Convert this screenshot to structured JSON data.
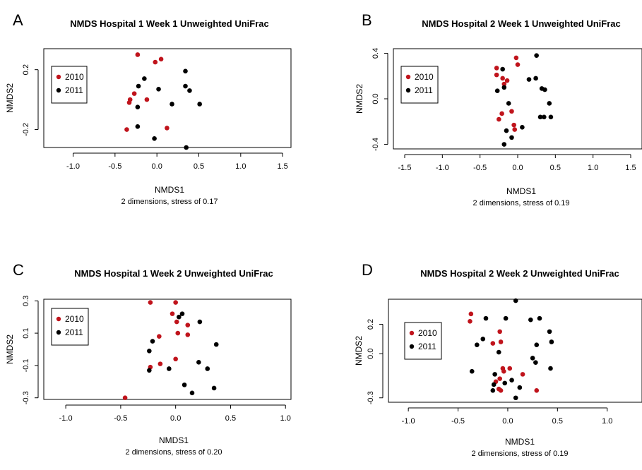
{
  "chart_data": [
    {
      "panel_label": "A",
      "type": "scatter",
      "title": "NMDS Hospital 1 Week 1 Unweighted UniFrac",
      "xlabel": "NMDS1",
      "subtitle": "2 dimensions, stress of 0.17",
      "ylabel": "NMDS2",
      "xlim": [
        -1.35,
        1.6
      ],
      "ylim": [
        -0.32,
        0.34
      ],
      "xticks": [
        -1.0,
        -0.5,
        0.0,
        0.5,
        1.0,
        1.5
      ],
      "xtick_labels": [
        "-1.0",
        "-0.5",
        "0.0",
        "0.5",
        "1.0",
        "1.5"
      ],
      "yticks": [
        -0.2,
        0.2
      ],
      "ytick_labels": [
        "-0.2",
        "0.2"
      ],
      "legend": {
        "position": "top-left"
      },
      "series": [
        {
          "name": "2010",
          "color": "#c0141c",
          "points": [
            [
              -0.23,
              0.3
            ],
            [
              0.05,
              0.27
            ],
            [
              -0.02,
              0.25
            ],
            [
              -0.27,
              0.04
            ],
            [
              -0.32,
              0.0
            ],
            [
              -0.33,
              -0.02
            ],
            [
              -0.12,
              0.0
            ],
            [
              -0.36,
              -0.2
            ],
            [
              0.12,
              -0.19
            ]
          ]
        },
        {
          "name": "2011",
          "color": "#000000",
          "points": [
            [
              0.34,
              0.19
            ],
            [
              -0.15,
              0.14
            ],
            [
              -0.22,
              0.09
            ],
            [
              0.34,
              0.09
            ],
            [
              0.39,
              0.06
            ],
            [
              0.02,
              0.07
            ],
            [
              0.18,
              -0.03
            ],
            [
              0.51,
              -0.03
            ],
            [
              -0.23,
              -0.05
            ],
            [
              -0.23,
              -0.18
            ],
            [
              -0.03,
              -0.26
            ],
            [
              0.35,
              -0.32
            ]
          ]
        }
      ]
    },
    {
      "panel_label": "B",
      "type": "scatter",
      "title": "NMDS Hospital 2 Week 1 Unweighted UniFrac",
      "xlabel": "NMDS1",
      "subtitle": "2 dimensions, stress of 0.19",
      "ylabel": "NMDS2",
      "xlim": [
        -1.65,
        1.65
      ],
      "ylim": [
        -0.44,
        0.44
      ],
      "xticks": [
        -1.5,
        -1.0,
        -0.5,
        0.0,
        0.5,
        1.0,
        1.5
      ],
      "xtick_labels": [
        "-1.5",
        "-1.0",
        "-0.5",
        "0.0",
        "0.5",
        "1.0",
        "1.5"
      ],
      "yticks": [
        -0.4,
        0.0,
        0.4
      ],
      "ytick_labels": [
        "-0.4",
        "0.0",
        "0.4"
      ],
      "legend": {
        "position": "top-left"
      },
      "series": [
        {
          "name": "2010",
          "color": "#c0141c",
          "points": [
            [
              -0.02,
              0.36
            ],
            [
              -0.28,
              0.27
            ],
            [
              0.0,
              0.3
            ],
            [
              -0.28,
              0.21
            ],
            [
              -0.2,
              0.18
            ],
            [
              -0.14,
              0.16
            ],
            [
              -0.18,
              0.13
            ],
            [
              -0.21,
              -0.13
            ],
            [
              -0.08,
              -0.11
            ],
            [
              -0.25,
              -0.18
            ],
            [
              -0.05,
              -0.23
            ],
            [
              -0.04,
              -0.27
            ]
          ]
        },
        {
          "name": "2011",
          "color": "#000000",
          "points": [
            [
              0.25,
              0.38
            ],
            [
              -0.2,
              0.26
            ],
            [
              0.15,
              0.17
            ],
            [
              0.24,
              0.18
            ],
            [
              -0.27,
              0.07
            ],
            [
              -0.18,
              0.1
            ],
            [
              0.32,
              0.09
            ],
            [
              0.36,
              0.08
            ],
            [
              -0.12,
              -0.04
            ],
            [
              0.42,
              -0.04
            ],
            [
              0.3,
              -0.16
            ],
            [
              0.35,
              -0.16
            ],
            [
              0.44,
              -0.16
            ],
            [
              -0.15,
              -0.28
            ],
            [
              0.06,
              -0.25
            ],
            [
              -0.08,
              -0.34
            ],
            [
              -0.18,
              -0.4
            ]
          ]
        }
      ]
    },
    {
      "panel_label": "C",
      "type": "scatter",
      "title": "NMDS Hospital 1 Week 2 Unweighted UniFrac",
      "xlabel": "NMDS1",
      "subtitle": "2 dimensions, stress of 0.20",
      "ylabel": "NMDS2",
      "xlim": [
        -1.2,
        1.05
      ],
      "ylim": [
        -0.31,
        0.31
      ],
      "xticks": [
        -1.0,
        -0.5,
        0.0,
        0.5,
        1.0
      ],
      "xtick_labels": [
        "-1.0",
        "-0.5",
        "0.0",
        "0.5",
        "1.0"
      ],
      "yticks": [
        -0.3,
        -0.1,
        0.1,
        0.3
      ],
      "ytick_labels": [
        "-0.3",
        "-0.1",
        "0.1",
        "0.3"
      ],
      "legend": {
        "position": "top-left"
      },
      "series": [
        {
          "name": "2010",
          "color": "#c0141c",
          "points": [
            [
              -0.23,
              0.29
            ],
            [
              0.0,
              0.29
            ],
            [
              -0.03,
              0.22
            ],
            [
              0.01,
              0.17
            ],
            [
              0.11,
              0.15
            ],
            [
              0.02,
              0.1
            ],
            [
              0.11,
              0.09
            ],
            [
              -0.15,
              0.08
            ],
            [
              -0.23,
              -0.11
            ],
            [
              -0.14,
              -0.09
            ],
            [
              0.0,
              -0.06
            ],
            [
              -0.46,
              -0.3
            ]
          ]
        },
        {
          "name": "2011",
          "color": "#000000",
          "points": [
            [
              0.06,
              0.22
            ],
            [
              0.03,
              0.2
            ],
            [
              0.22,
              0.17
            ],
            [
              -0.21,
              0.05
            ],
            [
              0.37,
              0.03
            ],
            [
              -0.24,
              -0.01
            ],
            [
              0.21,
              -0.08
            ],
            [
              -0.24,
              -0.13
            ],
            [
              -0.06,
              -0.12
            ],
            [
              0.29,
              -0.12
            ],
            [
              0.08,
              -0.22
            ],
            [
              0.15,
              -0.27
            ],
            [
              0.35,
              -0.24
            ]
          ]
        }
      ]
    },
    {
      "panel_label": "D",
      "type": "scatter",
      "title": "NMDS Hospital 2 Week 2 Unweighted UniFrac",
      "xlabel": "NMDS1",
      "subtitle": "2 dimensions, stress of 0.19",
      "ylabel": "NMDS2",
      "xlim": [
        -1.2,
        1.35
      ],
      "ylim": [
        -0.33,
        0.37
      ],
      "xticks": [
        -1.0,
        -0.5,
        0.0,
        0.5,
        1.0
      ],
      "xtick_labels": [
        "-1.0",
        "-0.5",
        "0.0",
        "0.5",
        "1.0"
      ],
      "yticks": [
        -0.3,
        0.0,
        0.2
      ],
      "ytick_labels": [
        "-0.3",
        "0.0",
        "0.2"
      ],
      "legend": {
        "position": "top-left"
      },
      "series": [
        {
          "name": "2010",
          "color": "#c0141c",
          "points": [
            [
              -0.37,
              0.27
            ],
            [
              -0.38,
              0.22
            ],
            [
              -0.08,
              0.15
            ],
            [
              -0.07,
              0.08
            ],
            [
              -0.15,
              0.07
            ],
            [
              -0.05,
              -0.1
            ],
            [
              0.02,
              -0.1
            ],
            [
              -0.08,
              -0.17
            ],
            [
              0.15,
              -0.14
            ],
            [
              -0.12,
              -0.19
            ],
            [
              -0.04,
              -0.12
            ],
            [
              -0.09,
              -0.24
            ],
            [
              -0.07,
              -0.25
            ],
            [
              0.29,
              -0.25
            ]
          ]
        },
        {
          "name": "2011",
          "color": "#000000",
          "points": [
            [
              0.08,
              0.36
            ],
            [
              -0.22,
              0.24
            ],
            [
              -0.02,
              0.24
            ],
            [
              0.23,
              0.23
            ],
            [
              0.32,
              0.24
            ],
            [
              0.42,
              0.15
            ],
            [
              -0.25,
              0.1
            ],
            [
              0.44,
              0.08
            ],
            [
              -0.31,
              0.06
            ],
            [
              0.29,
              0.06
            ],
            [
              -0.09,
              0.01
            ],
            [
              0.25,
              -0.03
            ],
            [
              0.28,
              -0.06
            ],
            [
              -0.36,
              -0.12
            ],
            [
              0.43,
              -0.1
            ],
            [
              -0.13,
              -0.14
            ],
            [
              0.04,
              -0.18
            ],
            [
              -0.14,
              -0.21
            ],
            [
              -0.03,
              -0.2
            ],
            [
              0.12,
              -0.23
            ],
            [
              -0.15,
              -0.25
            ],
            [
              0.08,
              -0.3
            ]
          ]
        }
      ]
    }
  ]
}
